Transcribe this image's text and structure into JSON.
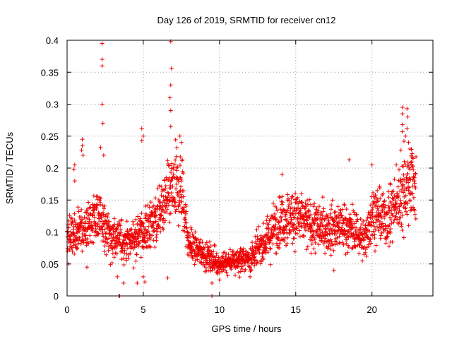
{
  "chart_data": {
    "type": "scatter",
    "title": "Day 126 of 2019, SRMTID for receiver cn12",
    "xlabel": "GPS time / hours",
    "ylabel": "SRMTID / TECUs",
    "xlim": [
      0,
      24
    ],
    "ylim": [
      0,
      0.4
    ],
    "xticks": [
      0,
      5,
      10,
      15,
      20
    ],
    "xtick_labels": [
      "0",
      "5",
      "10",
      "15",
      "20"
    ],
    "yticks": [
      0,
      0.05,
      0.1,
      0.15,
      0.2,
      0.25,
      0.3,
      0.35,
      0.4
    ],
    "ytick_labels": [
      "0",
      "0.05",
      "0.1",
      "0.15",
      "0.2",
      "0.25",
      "0.3",
      "0.35",
      "0.4"
    ],
    "grid": true,
    "marker": "+",
    "series": [
      {
        "name": "SRMTID",
        "color": "#ee0000",
        "baseline": {
          "hours": [
            0,
            1,
            2,
            3,
            4,
            5,
            6,
            6.8,
            7.5,
            8,
            9,
            10,
            11,
            12,
            13,
            14,
            15,
            16,
            17,
            18,
            19,
            19.5,
            20,
            21,
            22,
            22.5,
            22.9
          ],
          "srmtid": [
            0.095,
            0.105,
            0.125,
            0.09,
            0.085,
            0.1,
            0.125,
            0.16,
            0.17,
            0.08,
            0.065,
            0.05,
            0.055,
            0.06,
            0.085,
            0.12,
            0.125,
            0.11,
            0.105,
            0.11,
            0.1,
            0.085,
            0.13,
            0.12,
            0.16,
            0.18,
            0.175
          ]
        },
        "points": [
          {
            "x": 2.3,
            "y": 0.395
          },
          {
            "x": 2.3,
            "y": 0.37
          },
          {
            "x": 2.3,
            "y": 0.36
          },
          {
            "x": 2.3,
            "y": 0.3
          },
          {
            "x": 2.35,
            "y": 0.27
          },
          {
            "x": 6.8,
            "y": 0.398
          },
          {
            "x": 6.85,
            "y": 0.356
          },
          {
            "x": 6.8,
            "y": 0.33
          },
          {
            "x": 6.75,
            "y": 0.31
          },
          {
            "x": 6.8,
            "y": 0.29
          },
          {
            "x": 6.8,
            "y": 0.265
          },
          {
            "x": 4.9,
            "y": 0.262
          },
          {
            "x": 5.0,
            "y": 0.25
          },
          {
            "x": 4.9,
            "y": 0.243
          },
          {
            "x": 7.4,
            "y": 0.25
          },
          {
            "x": 7.5,
            "y": 0.24
          },
          {
            "x": 7.2,
            "y": 0.232
          },
          {
            "x": 1.0,
            "y": 0.245
          },
          {
            "x": 1.0,
            "y": 0.235
          },
          {
            "x": 0.95,
            "y": 0.228
          },
          {
            "x": 1.05,
            "y": 0.22
          },
          {
            "x": 2.2,
            "y": 0.232
          },
          {
            "x": 2.4,
            "y": 0.22
          },
          {
            "x": 0.5,
            "y": 0.205
          },
          {
            "x": 0.45,
            "y": 0.198
          },
          {
            "x": 0.5,
            "y": 0.18
          },
          {
            "x": 22.0,
            "y": 0.295
          },
          {
            "x": 22.0,
            "y": 0.285
          },
          {
            "x": 22.3,
            "y": 0.293
          },
          {
            "x": 22.35,
            "y": 0.28
          },
          {
            "x": 22.0,
            "y": 0.268
          },
          {
            "x": 22.3,
            "y": 0.262
          },
          {
            "x": 22.0,
            "y": 0.257
          },
          {
            "x": 22.2,
            "y": 0.25
          },
          {
            "x": 22.1,
            "y": 0.242
          },
          {
            "x": 22.4,
            "y": 0.24
          },
          {
            "x": 22.5,
            "y": 0.23
          },
          {
            "x": 21.9,
            "y": 0.228
          },
          {
            "x": 22.7,
            "y": 0.215
          },
          {
            "x": 22.6,
            "y": 0.21
          },
          {
            "x": 18.5,
            "y": 0.213
          },
          {
            "x": 20.0,
            "y": 0.205
          },
          {
            "x": 14.1,
            "y": 0.19
          },
          {
            "x": 3.4,
            "y": 0.0
          },
          {
            "x": 3.45,
            "y": 0.0
          },
          {
            "x": 9.5,
            "y": 0.0
          },
          {
            "x": 3.3,
            "y": 0.03
          },
          {
            "x": 3.7,
            "y": 0.02
          },
          {
            "x": 4.6,
            "y": 0.02
          },
          {
            "x": 5.1,
            "y": 0.022
          },
          {
            "x": 5.0,
            "y": 0.03
          },
          {
            "x": 6.6,
            "y": 0.028
          },
          {
            "x": 0.1,
            "y": 0.05
          },
          {
            "x": 1.3,
            "y": 0.045
          },
          {
            "x": 9.5,
            "y": 0.02
          },
          {
            "x": 10.0,
            "y": 0.025
          },
          {
            "x": 12.0,
            "y": 0.03
          },
          {
            "x": 17.5,
            "y": 0.04
          }
        ]
      }
    ]
  }
}
